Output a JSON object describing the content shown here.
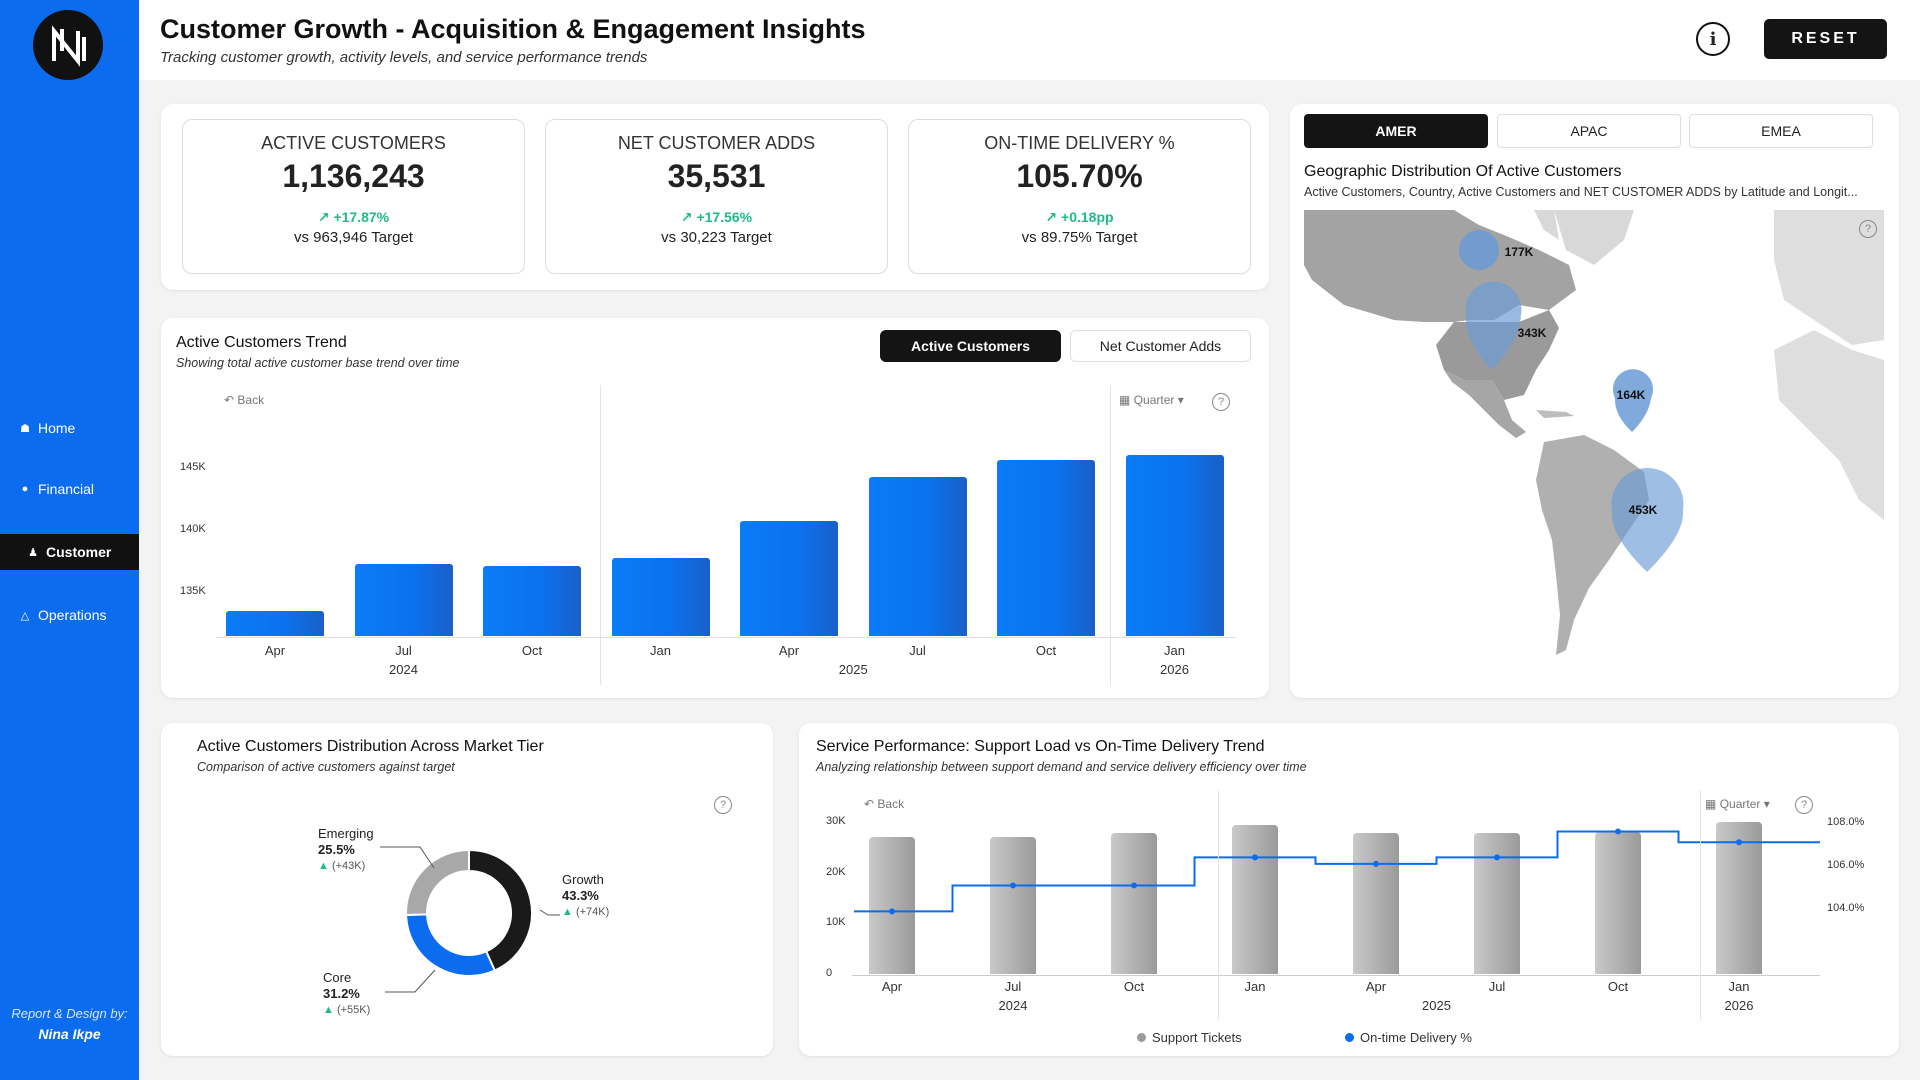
{
  "sidebar": {
    "items": [
      {
        "label": "Home",
        "icon": "home-icon"
      },
      {
        "label": "Financial",
        "icon": "money-bag-icon"
      },
      {
        "label": "Customer",
        "icon": "person-icon"
      },
      {
        "label": "Operations",
        "icon": "warning-icon"
      }
    ],
    "active": "Customer",
    "credit_line1": "Report & Design by:",
    "credit_name": "Nina Ikpe"
  },
  "header": {
    "title": "Customer Growth - Acquisition & Engagement Insights",
    "subtitle": "Tracking customer growth, activity levels, and service performance trends",
    "info_symbol": "i",
    "reset_label": "RESET"
  },
  "kpis": [
    {
      "label": "ACTIVE CUSTOMERS",
      "value": "1,136,243",
      "change": "+17.87%",
      "target": "vs 963,946 Target"
    },
    {
      "label": "NET CUSTOMER ADDS",
      "value": "35,531",
      "change": "+17.56%",
      "target": "vs 30,223 Target"
    },
    {
      "label": "ON-TIME DELIVERY %",
      "value": "105.70%",
      "change": "+0.18pp",
      "target": "vs 89.75% Target"
    }
  ],
  "trend": {
    "title": "Active Customers Trend",
    "subtitle": "Showing total active customer base trend over time",
    "toggle_active": "Active Customers",
    "toggle_other": "Net Customer Adds",
    "back": "Back",
    "period": "Quarter",
    "help": "?"
  },
  "service": {
    "title": "Service Performance: Support Load vs On-Time Delivery Trend",
    "subtitle": "Analyzing relationship between support demand and service delivery efficiency over time",
    "back": "Back",
    "period": "Quarter",
    "help": "?",
    "legend_bar": "Support Tickets",
    "legend_line": "On-time Delivery %"
  },
  "tier": {
    "title": "Active Customers Distribution Across Market Tier",
    "subtitle": "Comparison of active customers against target",
    "help": "?",
    "segments": [
      {
        "name": "Emerging",
        "pct": "25.5%",
        "change": "(+43K)",
        "color": "#a8a8a8"
      },
      {
        "name": "Growth",
        "pct": "43.3%",
        "change": "(+74K)",
        "color": "#1a1a1a"
      },
      {
        "name": "Core",
        "pct": "31.2%",
        "change": "(+55K)",
        "color": "#0b6cf0"
      }
    ]
  },
  "map": {
    "tabs": [
      "AMER",
      "APAC",
      "EMEA"
    ],
    "active_tab": "AMER",
    "title": "Geographic Distribution Of Active Customers",
    "subtitle": "Active Customers, Country, Active Customers and NET CUSTOMER ADDS by Latitude and Longit...",
    "help": "?",
    "pins": [
      "177K",
      "343K",
      "164K",
      "453K"
    ]
  },
  "colors": {
    "accent": "#0b6cf0",
    "positive": "#20b98a",
    "dark": "#141414"
  },
  "chart_data": [
    {
      "type": "bar",
      "title": "Active Customers Trend",
      "categories": [
        "Apr",
        "Jul",
        "Oct",
        "Jan",
        "Apr",
        "Jul",
        "Oct",
        "Jan"
      ],
      "year_groups": [
        {
          "label": "2024",
          "start": 0,
          "end": 2
        },
        {
          "label": "2025",
          "start": 3,
          "end": 6
        },
        {
          "label": "2026",
          "start": 7,
          "end": 7
        }
      ],
      "values": [
        133500,
        137300,
        137100,
        137800,
        140700,
        144300,
        145600,
        146000
      ],
      "ylim": [
        131500,
        149000
      ],
      "yticks": [
        135000,
        140000,
        145000
      ],
      "ytick_labels": [
        "135K",
        "140K",
        "145K"
      ]
    },
    {
      "type": "bar+line",
      "title": "Service Performance: Support Load vs On-Time Delivery Trend",
      "categories": [
        "Apr",
        "Jul",
        "Oct",
        "Jan",
        "Apr",
        "Jul",
        "Oct",
        "Jan"
      ],
      "year_groups": [
        {
          "label": "2024",
          "start": 0,
          "end": 2
        },
        {
          "label": "2025",
          "start": 3,
          "end": 6
        },
        {
          "label": "2026",
          "start": 7,
          "end": 7
        }
      ],
      "series": [
        {
          "name": "Support Tickets",
          "type": "bar",
          "axis": "left",
          "values": [
            27000,
            27000,
            27800,
            29500,
            27800,
            27800,
            28000,
            30000
          ]
        },
        {
          "name": "On-time Delivery %",
          "type": "step-line",
          "axis": "right",
          "values": [
            103.9,
            105.1,
            105.1,
            106.4,
            106.1,
            106.4,
            107.6,
            107.1
          ]
        }
      ],
      "y_left": {
        "lim": [
          0,
          32000
        ],
        "ticks": [
          0,
          10000,
          20000,
          30000
        ],
        "labels": [
          "0",
          "10K",
          "20K",
          "30K"
        ]
      },
      "y_right": {
        "lim": [
          101.0,
          108.5
        ],
        "ticks": [
          104,
          106,
          108
        ],
        "labels": [
          "104.0%",
          "106.0%",
          "108.0%"
        ]
      }
    },
    {
      "type": "pie",
      "title": "Active Customers Distribution Across Market Tier",
      "categories": [
        "Growth",
        "Core",
        "Emerging"
      ],
      "values": [
        43.3,
        31.2,
        25.5
      ]
    }
  ]
}
